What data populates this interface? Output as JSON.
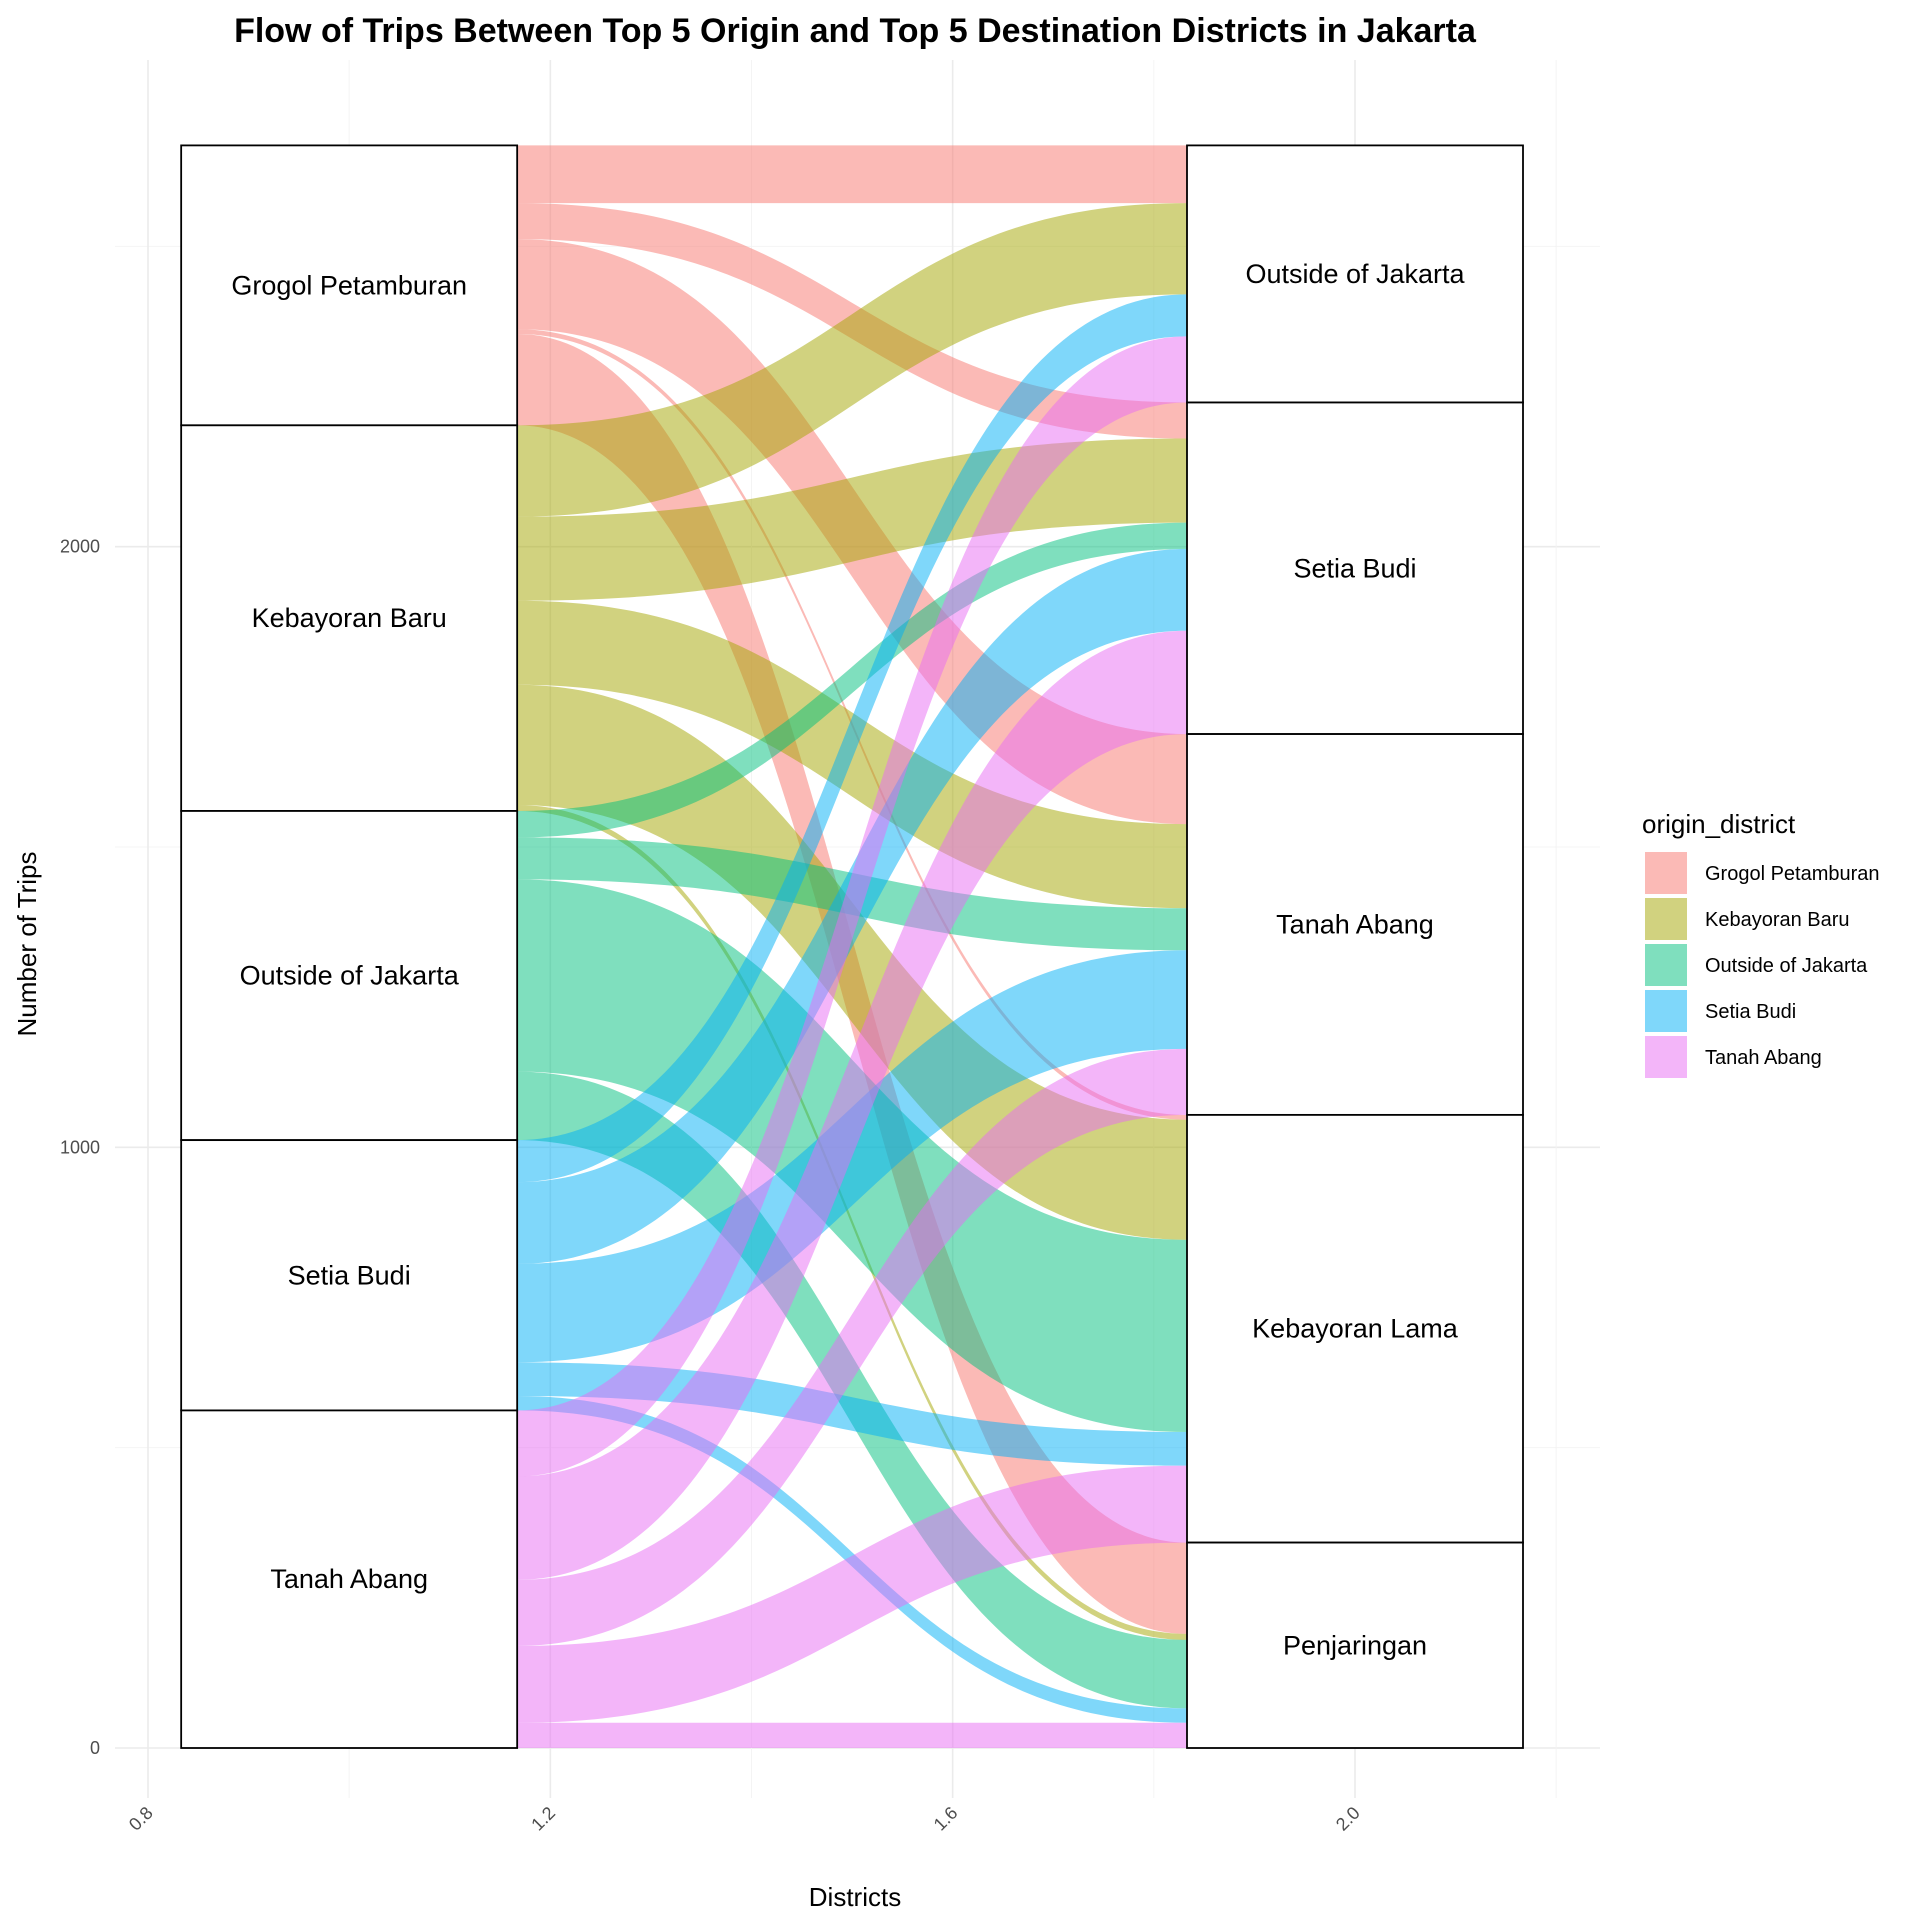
{
  "chart_data": {
    "type": "alluvial",
    "title": "Flow of Trips Between Top 5 Origin and Top 5 Destination Districts in Jakarta",
    "xlabel": "Districts",
    "ylabel": "Number of Trips",
    "xlim": [
      0.8,
      2.2
    ],
    "ylim": [
      0,
      2672
    ],
    "x_ticks": [
      {
        "value": 0.8,
        "label": "0.8"
      },
      {
        "value": 1.2,
        "label": "1.2"
      },
      {
        "value": 1.6,
        "label": "1.6"
      },
      {
        "value": 2.0,
        "label": "2.0"
      }
    ],
    "y_ticks": [
      {
        "value": 0,
        "label": "0"
      },
      {
        "value": 1000,
        "label": "1000"
      },
      {
        "value": 2000,
        "label": "2000"
      }
    ],
    "grid": true,
    "legend_title": "origin_district",
    "legend_position": "right",
    "origin_axis_x": 1.0,
    "destination_axis_x": 2.0,
    "origins": [
      "Grogol Petamburan",
      "Kebayoran Baru",
      "Outside of Jakarta",
      "Setia Budi",
      "Tanah Abang"
    ],
    "destinations": [
      "Outside of Jakarta",
      "Setia Budi",
      "Tanah Abang",
      "Kebayoran Lama",
      "Penjaringan"
    ],
    "colors": {
      "Grogol Petamburan": "#F8766D",
      "Kebayoran Baru": "#A3A500",
      "Outside of Jakarta": "#00BF7D",
      "Setia Budi": "#00B0F6",
      "Tanah Abang": "#E76BF3"
    },
    "flows": [
      {
        "origin": "Grogol Petamburan",
        "destination": "Outside of Jakarta",
        "trips": 96
      },
      {
        "origin": "Grogol Petamburan",
        "destination": "Setia Budi",
        "trips": 60
      },
      {
        "origin": "Grogol Petamburan",
        "destination": "Tanah Abang",
        "trips": 150
      },
      {
        "origin": "Grogol Petamburan",
        "destination": "Kebayoran Lama",
        "trips": 8
      },
      {
        "origin": "Grogol Petamburan",
        "destination": "Penjaringan",
        "trips": 152
      },
      {
        "origin": "Kebayoran Baru",
        "destination": "Outside of Jakarta",
        "trips": 152
      },
      {
        "origin": "Kebayoran Baru",
        "destination": "Setia Budi",
        "trips": 140
      },
      {
        "origin": "Kebayoran Baru",
        "destination": "Tanah Abang",
        "trips": 140
      },
      {
        "origin": "Kebayoran Baru",
        "destination": "Kebayoran Lama",
        "trips": 200
      },
      {
        "origin": "Kebayoran Baru",
        "destination": "Penjaringan",
        "trips": 10
      },
      {
        "origin": "Outside of Jakarta",
        "destination": "Setia Budi",
        "trips": 44
      },
      {
        "origin": "Outside of Jakarta",
        "destination": "Tanah Abang",
        "trips": 70
      },
      {
        "origin": "Outside of Jakarta",
        "destination": "Kebayoran Lama",
        "trips": 320
      },
      {
        "origin": "Outside of Jakarta",
        "destination": "Penjaringan",
        "trips": 114
      },
      {
        "origin": "Setia Budi",
        "destination": "Outside of Jakarta",
        "trips": 70
      },
      {
        "origin": "Setia Budi",
        "destination": "Setia Budi",
        "trips": 136
      },
      {
        "origin": "Setia Budi",
        "destination": "Tanah Abang",
        "trips": 164
      },
      {
        "origin": "Setia Budi",
        "destination": "Kebayoran Lama",
        "trips": 56
      },
      {
        "origin": "Setia Budi",
        "destination": "Penjaringan",
        "trips": 24
      },
      {
        "origin": "Tanah Abang",
        "destination": "Outside of Jakarta",
        "trips": 110
      },
      {
        "origin": "Tanah Abang",
        "destination": "Setia Budi",
        "trips": 172
      },
      {
        "origin": "Tanah Abang",
        "destination": "Tanah Abang",
        "trips": 110
      },
      {
        "origin": "Tanah Abang",
        "destination": "Kebayoran Lama",
        "trips": 128
      },
      {
        "origin": "Tanah Abang",
        "destination": "Penjaringan",
        "trips": 42
      }
    ]
  }
}
